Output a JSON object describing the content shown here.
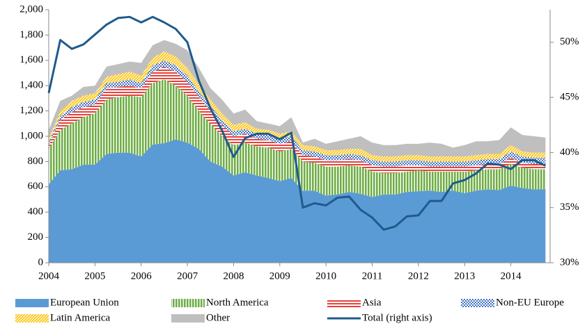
{
  "chart_data": {
    "type": "stacked-area-line",
    "x": [
      2004,
      2004.25,
      2004.5,
      2004.75,
      2005,
      2005.25,
      2005.5,
      2005.75,
      2006,
      2006.25,
      2006.5,
      2006.75,
      2007,
      2007.25,
      2007.5,
      2007.75,
      2008,
      2008.25,
      2008.5,
      2008.75,
      2009,
      2009.25,
      2009.5,
      2009.75,
      2010,
      2010.25,
      2010.5,
      2010.75,
      2011,
      2011.25,
      2011.5,
      2011.75,
      2012,
      2012.25,
      2012.5,
      2012.75,
      2013,
      2013.25,
      2013.5,
      2013.75,
      2014,
      2014.25,
      2014.5,
      2014.75
    ],
    "xlim": [
      2004,
      2014.85
    ],
    "xticks": [
      2004,
      2005,
      2006,
      2007,
      2008,
      2009,
      2010,
      2011,
      2012,
      2013,
      2014
    ],
    "ylim": [
      0,
      2000
    ],
    "yticks": [
      0,
      200,
      400,
      600,
      800,
      {
        "value": 1000,
        "label": "1,000"
      },
      {
        "value": 1200,
        "label": "1,200"
      },
      {
        "value": 1400,
        "label": "1,400"
      },
      {
        "value": 1600,
        "label": "1,600"
      },
      {
        "value": 1800,
        "label": "1,800"
      },
      {
        "value": 2000,
        "label": "2,000"
      }
    ],
    "y2lim": [
      30,
      52.95
    ],
    "y2ticks": [
      {
        "value": 30,
        "label": "30%"
      },
      {
        "value": 35,
        "label": "35%"
      },
      {
        "value": 40,
        "label": "40%"
      },
      {
        "value": 45,
        "label": "45%"
      },
      {
        "value": 50,
        "label": "50%"
      }
    ],
    "series": [
      {
        "name": "European Union",
        "color": "#5b9bd5",
        "pattern": "solid",
        "values": [
          620,
          730,
          740,
          775,
          775,
          860,
          870,
          870,
          840,
          935,
          945,
          975,
          950,
          900,
          800,
          760,
          690,
          715,
          690,
          670,
          645,
          670,
          570,
          570,
          530,
          540,
          560,
          545,
          520,
          540,
          540,
          560,
          565,
          570,
          560,
          570,
          550,
          570,
          580,
          575,
          610,
          590,
          580,
          580
        ]
      },
      {
        "name": "North America",
        "color": "#70ad47",
        "pattern": "vertical",
        "values": [
          280,
          320,
          360,
          375,
          405,
          430,
          440,
          450,
          470,
          485,
          505,
          425,
          370,
          300,
          300,
          240,
          240,
          235,
          230,
          240,
          235,
          230,
          230,
          220,
          230,
          220,
          210,
          215,
          200,
          170,
          170,
          160,
          165,
          150,
          160,
          150,
          170,
          160,
          160,
          165,
          170,
          160,
          160,
          160
        ]
      },
      {
        "name": "Asia",
        "color": "#e8413a",
        "pattern": "horizontal",
        "values": [
          30,
          80,
          90,
          80,
          70,
          90,
          80,
          80,
          70,
          90,
          100,
          110,
          110,
          110,
          100,
          90,
          70,
          70,
          60,
          60,
          60,
          60,
          50,
          50,
          50,
          50,
          50,
          50,
          50,
          50,
          50,
          50,
          40,
          40,
          40,
          40,
          40,
          40,
          40,
          40,
          50,
          40,
          40,
          40
        ]
      },
      {
        "name": "Non-EU Europe",
        "color": "#4472c4",
        "pattern": "dots",
        "values": [
          20,
          30,
          40,
          40,
          40,
          40,
          40,
          50,
          40,
          50,
          50,
          50,
          50,
          40,
          40,
          40,
          40,
          40,
          40,
          40,
          40,
          40,
          40,
          40,
          40,
          40,
          40,
          40,
          40,
          40,
          40,
          40,
          40,
          40,
          40,
          40,
          40,
          40,
          40,
          40,
          50,
          50,
          50,
          50
        ]
      },
      {
        "name": "Latin America",
        "color": "#ffc000",
        "pattern": "diagonal",
        "values": [
          30,
          40,
          50,
          50,
          50,
          50,
          60,
          60,
          60,
          60,
          70,
          70,
          60,
          60,
          50,
          50,
          50,
          50,
          40,
          40,
          40,
          40,
          40,
          40,
          40,
          40,
          40,
          50,
          40,
          40,
          40,
          40,
          40,
          40,
          40,
          40,
          40,
          40,
          40,
          40,
          50,
          40,
          40,
          40
        ]
      },
      {
        "name": "Other",
        "color": "#bfbfbf",
        "pattern": "solid",
        "values": [
          70,
          80,
          40,
          70,
          60,
          80,
          80,
          80,
          100,
          100,
          90,
          100,
          140,
          130,
          90,
          110,
          90,
          100,
          60,
          50,
          60,
          110,
          20,
          60,
          50,
          70,
          80,
          100,
          100,
          90,
          90,
          90,
          90,
          110,
          100,
          70,
          90,
          110,
          100,
          110,
          140,
          130,
          130,
          120
        ]
      },
      {
        "name": "Total (right axis)",
        "color": "#1f5a8c",
        "axis": "y2",
        "values": [
          45.4,
          50.2,
          49.4,
          49.8,
          50.7,
          51.6,
          52.2,
          52.3,
          51.8,
          52.3,
          51.8,
          51.2,
          50.0,
          46.5,
          44.0,
          42.0,
          39.6,
          41.3,
          41.7,
          41.7,
          41.2,
          41.8,
          35.0,
          35.4,
          35.2,
          35.9,
          36.0,
          34.8,
          34.1,
          33.0,
          33.3,
          34.2,
          34.3,
          35.6,
          35.6,
          37.2,
          37.5,
          38.1,
          39.0,
          38.9,
          38.5,
          39.3,
          39.3,
          38.8
        ]
      }
    ]
  }
}
